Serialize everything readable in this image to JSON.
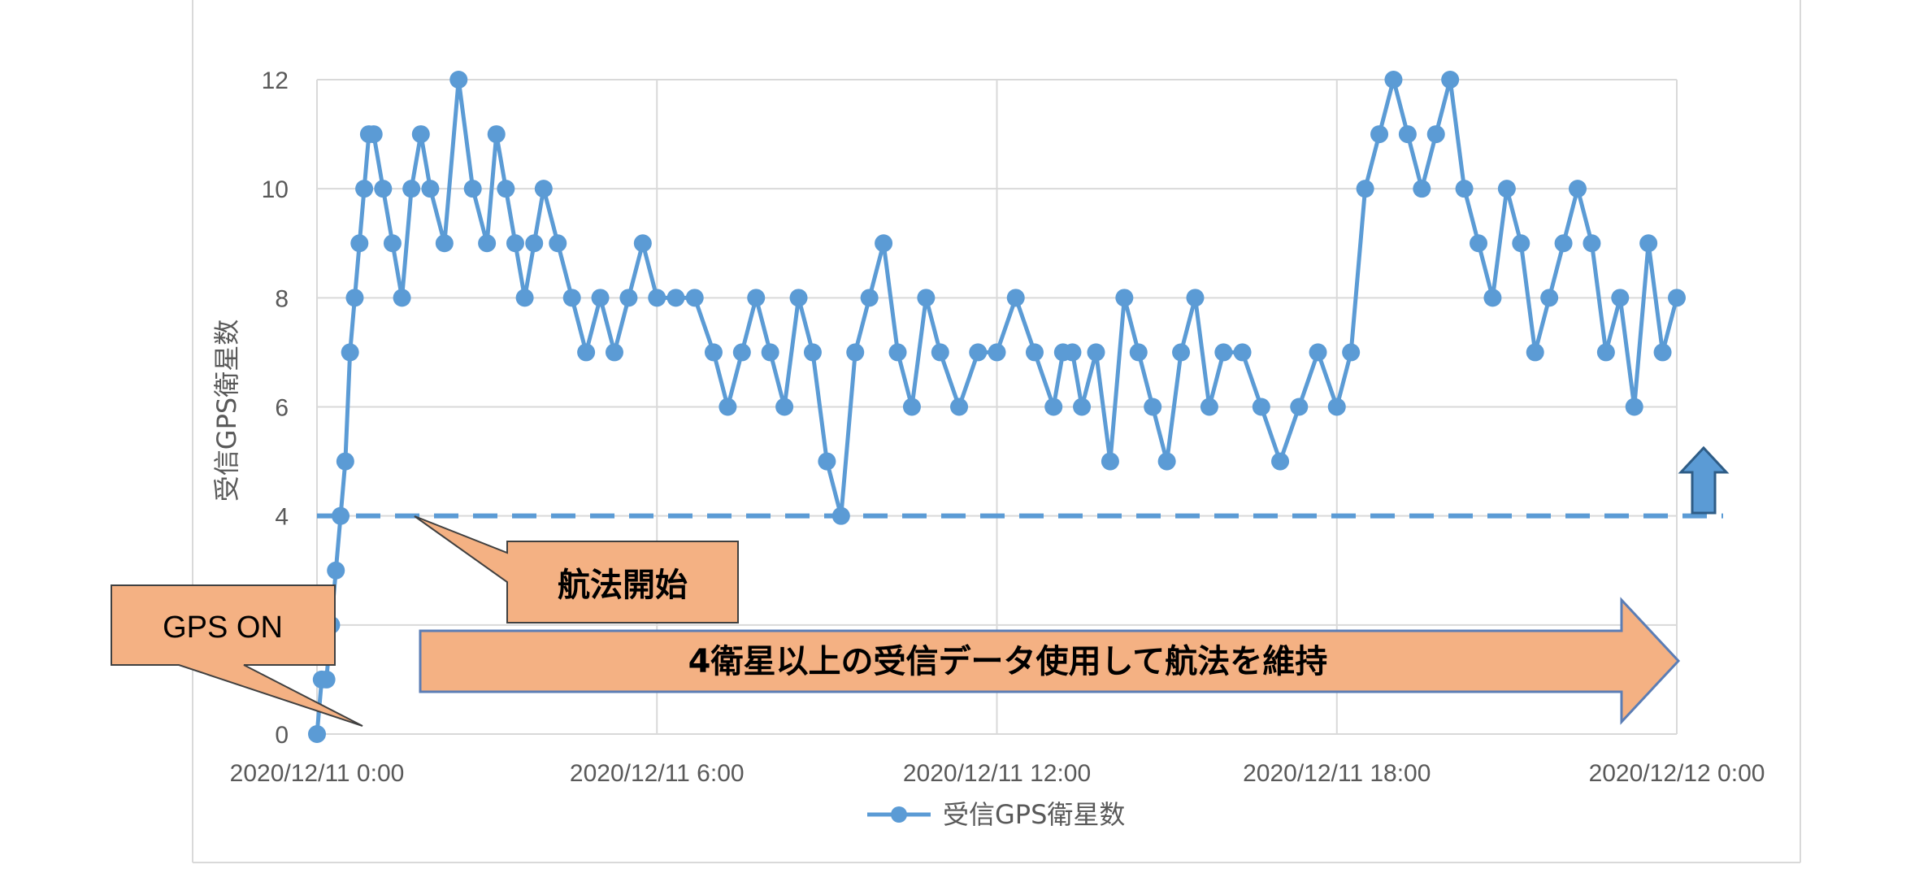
{
  "chart_data": {
    "type": "line",
    "title": "",
    "xlabel": "",
    "ylabel": "受信GPS衛星数",
    "ylim": [
      0,
      12
    ],
    "yticks": [
      "0",
      "2",
      "4",
      "6",
      "8",
      "10",
      "12"
    ],
    "xlim_hours": [
      0,
      24
    ],
    "xticks": [
      "2020/12/11 0:00",
      "2020/12/11 6:00",
      "2020/12/11 12:00",
      "2020/12/11 18:00",
      "2020/12/12 0:00"
    ],
    "grid": true,
    "legend": "bottom",
    "series": [
      {
        "name": "受信GPS衛星数",
        "color": "#5b9bd5",
        "x": [
          "2020/12/11 00:00",
          "2020/12/11 00:05",
          "2020/12/11 00:10",
          "2020/12/11 00:15",
          "2020/12/11 00:20",
          "2020/12/11 00:25",
          "2020/12/11 00:30",
          "2020/12/11 00:35",
          "2020/12/11 00:40",
          "2020/12/11 00:45",
          "2020/12/11 00:50",
          "2020/12/11 00:55",
          "2020/12/11 01:00",
          "2020/12/11 01:10",
          "2020/12/11 01:20",
          "2020/12/11 01:30",
          "2020/12/11 01:40",
          "2020/12/11 01:50",
          "2020/12/11 02:00",
          "2020/12/11 02:15",
          "2020/12/11 02:30",
          "2020/12/11 02:45",
          "2020/12/11 03:00",
          "2020/12/11 03:10",
          "2020/12/11 03:20",
          "2020/12/11 03:30",
          "2020/12/11 03:40",
          "2020/12/11 03:50",
          "2020/12/11 04:00",
          "2020/12/11 04:15",
          "2020/12/11 04:30",
          "2020/12/11 04:45",
          "2020/12/11 05:00",
          "2020/12/11 05:15",
          "2020/12/11 05:30",
          "2020/12/11 05:45",
          "2020/12/11 06:00",
          "2020/12/11 06:20",
          "2020/12/11 06:40",
          "2020/12/11 07:00",
          "2020/12/11 07:15",
          "2020/12/11 07:30",
          "2020/12/11 07:45",
          "2020/12/11 08:00",
          "2020/12/11 08:15",
          "2020/12/11 08:30",
          "2020/12/11 08:45",
          "2020/12/11 09:00",
          "2020/12/11 09:15",
          "2020/12/11 09:30",
          "2020/12/11 09:45",
          "2020/12/11 10:00",
          "2020/12/11 10:15",
          "2020/12/11 10:30",
          "2020/12/11 10:45",
          "2020/12/11 11:00",
          "2020/12/11 11:20",
          "2020/12/11 11:40",
          "2020/12/11 12:00",
          "2020/12/11 12:20",
          "2020/12/11 12:40",
          "2020/12/11 13:00",
          "2020/12/11 13:10",
          "2020/12/11 13:20",
          "2020/12/11 13:30",
          "2020/12/11 13:45",
          "2020/12/11 14:00",
          "2020/12/11 14:15",
          "2020/12/11 14:30",
          "2020/12/11 14:45",
          "2020/12/11 15:00",
          "2020/12/11 15:15",
          "2020/12/11 15:30",
          "2020/12/11 15:45",
          "2020/12/11 16:00",
          "2020/12/11 16:20",
          "2020/12/11 16:40",
          "2020/12/11 17:00",
          "2020/12/11 17:20",
          "2020/12/11 17:40",
          "2020/12/11 18:00",
          "2020/12/11 18:15",
          "2020/12/11 18:30",
          "2020/12/11 18:45",
          "2020/12/11 19:00",
          "2020/12/11 19:15",
          "2020/12/11 19:30",
          "2020/12/11 19:45",
          "2020/12/11 20:00",
          "2020/12/11 20:15",
          "2020/12/11 20:30",
          "2020/12/11 20:45",
          "2020/12/11 21:00",
          "2020/12/11 21:15",
          "2020/12/11 21:30",
          "2020/12/11 21:45",
          "2020/12/11 22:00",
          "2020/12/11 22:15",
          "2020/12/11 22:30",
          "2020/12/11 22:45",
          "2020/12/11 23:00",
          "2020/12/11 23:15",
          "2020/12/11 23:30",
          "2020/12/11 23:45",
          "2020/12/12 00:00"
        ],
        "values": [
          0,
          1,
          1,
          2,
          3,
          4,
          5,
          7,
          8,
          9,
          10,
          11,
          11,
          10,
          9,
          8,
          10,
          11,
          10,
          9,
          12,
          10,
          9,
          11,
          10,
          9,
          8,
          9,
          10,
          9,
          8,
          7,
          8,
          7,
          8,
          9,
          8,
          8,
          8,
          7,
          6,
          7,
          8,
          7,
          6,
          8,
          7,
          5,
          4,
          7,
          8,
          9,
          7,
          6,
          8,
          7,
          6,
          7,
          7,
          8,
          7,
          6,
          7,
          7,
          6,
          7,
          5,
          8,
          7,
          6,
          5,
          7,
          8,
          6,
          7,
          7,
          6,
          5,
          6,
          7,
          6,
          7,
          10,
          11,
          12,
          11,
          10,
          11,
          12,
          10,
          9,
          8,
          10,
          9,
          7,
          8,
          9,
          10,
          9,
          7,
          8,
          6,
          9,
          7,
          8
        ]
      }
    ],
    "threshold": {
      "value": 4
    },
    "annotations": {
      "gps_on": "GPS ON",
      "nav_start": "航法開始",
      "maintain": "4衛星以上の受信データ使用して航法を維持"
    }
  }
}
